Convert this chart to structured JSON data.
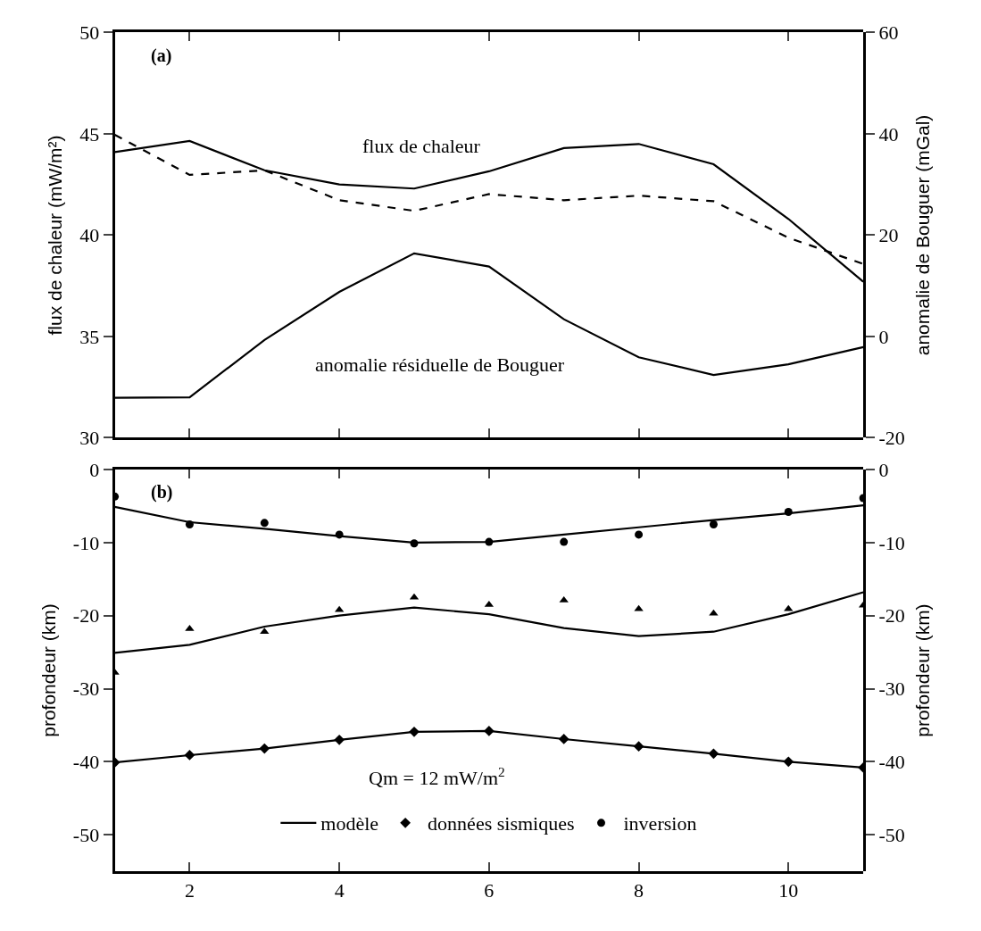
{
  "chart_data": [
    {
      "type": "line",
      "ylabel": "flux de chaleur (mW/m²)",
      "y2label": "anomalie de Bouguer (mGal)",
      "annotations": [
        "(a)",
        "flux de chaleur",
        "anomalie résiduelle de Bouguer"
      ],
      "x": [
        1,
        2,
        3,
        4,
        5,
        6,
        7,
        8,
        9,
        10,
        11
      ],
      "xlim": [
        1,
        11
      ],
      "xticks": [
        2,
        4,
        6,
        8,
        10
      ],
      "tick_labels": "y",
      "ylim": [
        30,
        50
      ],
      "yticks": [
        30,
        35,
        40,
        45,
        50
      ],
      "y2lim": [
        -20,
        60
      ],
      "y2ticks": [
        -20,
        0,
        20,
        40,
        60
      ],
      "marker": "none",
      "grid": false,
      "legend": false,
      "series": [
        {
          "color": "#000000",
          "values": [
            44.1,
            44.65,
            43.2,
            42.5,
            42.3,
            43.15,
            44.3,
            44.5,
            43.5,
            40.8,
            37.7
          ]
        },
        {
          "color": "#000000",
          "axis": "y2",
          "line_style": "dashed",
          "values": [
            39.8,
            31.9,
            32.8,
            26.9,
            24.8,
            28.1,
            26.9,
            27.8,
            26.7,
            19.5,
            14.3
          ]
        },
        {
          "color": "#000000",
          "axis": "y2",
          "values": [
            -12.1,
            -12,
            -0.7,
            8.8,
            16.4,
            13.8,
            3.4,
            -4.1,
            -7.6,
            -5.5,
            -2.1
          ]
        }
      ]
    },
    {
      "type": "line",
      "ylabel": "profondeur (km)",
      "y2label": "profondeur (km)",
      "annotations": [
        "(b)",
        "Qm = 12 mW/m$^{2}$"
      ],
      "x": [
        1,
        2,
        3,
        4,
        5,
        6,
        7,
        8,
        9,
        10,
        11
      ],
      "xlim": [
        1,
        11
      ],
      "xticks": [
        2,
        4,
        6,
        8,
        10
      ],
      "ylim": [
        -55,
        0
      ],
      "yticks": [
        -50,
        -40,
        -30,
        -20,
        -10,
        0
      ],
      "y2lim": [
        -55,
        0
      ],
      "y2ticks": [
        -50,
        -40,
        -30,
        -20,
        -10,
        0
      ],
      "grid": false,
      "legend": "bottom",
      "marker": "none",
      "series": [
        {
          "name": "modèle",
          "color": "#000000",
          "values": [
            -5.1,
            -7.2,
            -8.1,
            -9.1,
            -10,
            -9.9,
            -8.9,
            -7.9,
            -6.9,
            -6.0,
            -4.9
          ]
        },
        {
          "name": "données sismiques",
          "type": "scatter",
          "marker": "diamond",
          "color": "#000000",
          "values": [
            -40.1,
            -39.1,
            -38.2,
            -37,
            -35.9,
            -35.8,
            -36.9,
            -37.9,
            -38.9,
            -40,
            -40.8
          ]
        },
        {
          "name": "inversion",
          "type": "scatter",
          "marker": "circle",
          "color": "#000000",
          "values": [
            -3.7,
            -7.5,
            -7.3,
            -8.9,
            -10.1,
            -9.9,
            -9.9,
            -8.9,
            -7.5,
            -5.8,
            -3.9
          ]
        },
        {
          "color": "#000000",
          "values": [
            -25.1,
            -24,
            -21.5,
            -20,
            -18.9,
            -19.8,
            -21.7,
            -22.8,
            -22.2,
            -19.8,
            -16.8
          ]
        },
        {
          "color": "#000000",
          "values": [
            -40.1,
            -39.1,
            -38.2,
            -37,
            -35.9,
            -35.8,
            -36.9,
            -37.9,
            -38.9,
            -40,
            -40.8
          ]
        },
        {
          "type": "scatter",
          "marker": "triangle",
          "color": "#000000",
          "values": [
            -27.8,
            -21.8,
            -22.2,
            -19.2,
            -17.5,
            -18.5,
            -17.9,
            -19.1,
            -19.7,
            -19.1,
            -18.6
          ]
        }
      ]
    }
  ]
}
